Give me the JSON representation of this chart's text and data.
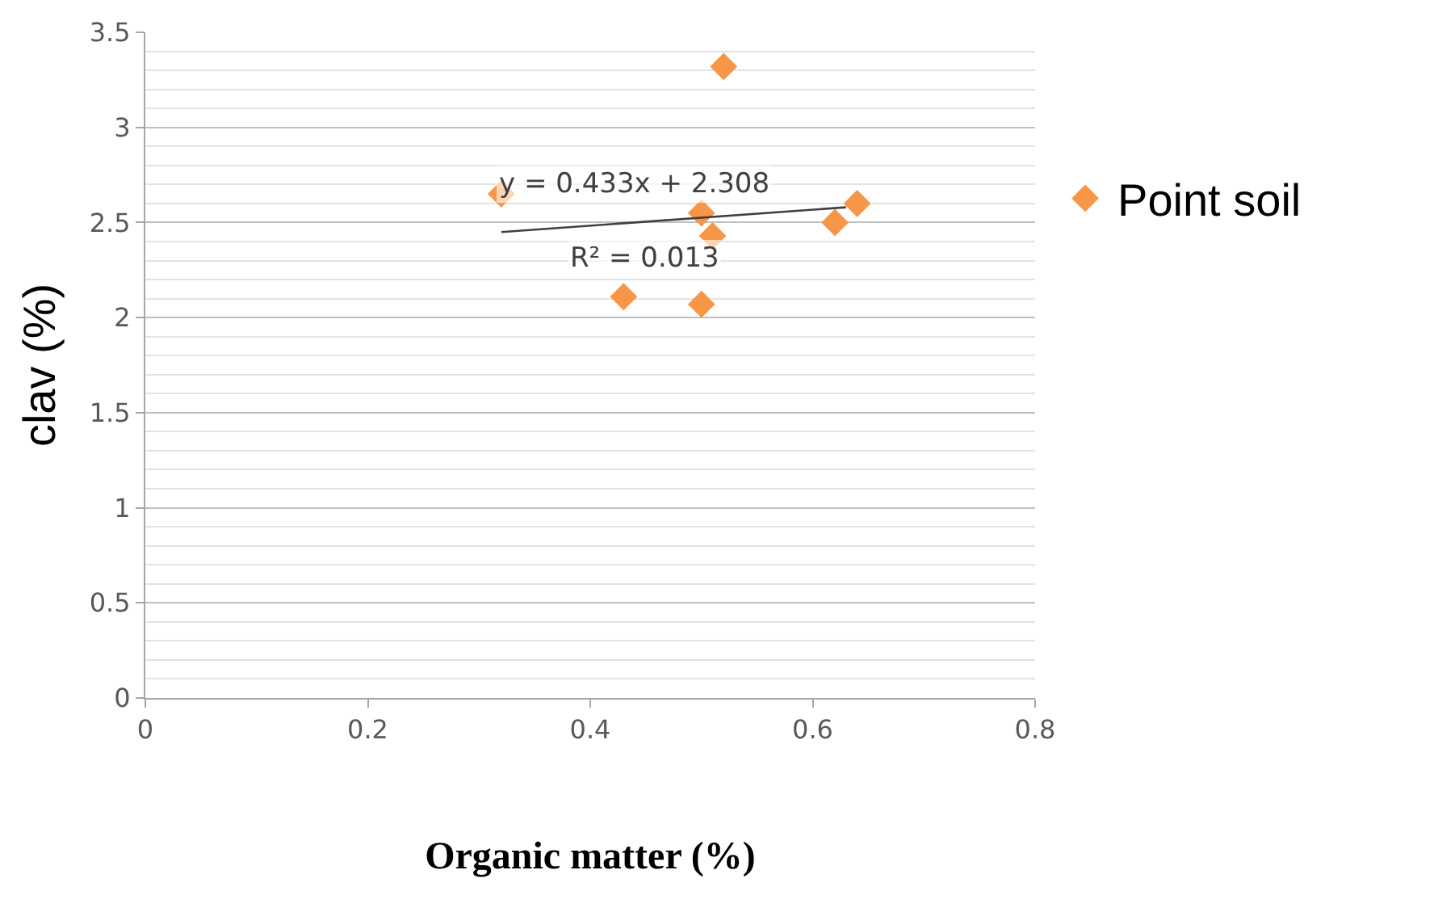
{
  "chart_data": {
    "type": "scatter",
    "xlabel": "Organic matter (%)",
    "ylabel": "clav (%)",
    "xlim": [
      0,
      0.8
    ],
    "xticks": [
      0,
      0.2,
      0.4,
      0.6,
      0.8
    ],
    "ylim": [
      0,
      3.5
    ],
    "yticks": [
      0,
      0.5,
      1,
      1.5,
      2,
      2.5,
      3,
      3.5
    ],
    "grid": "y",
    "legend": "right",
    "series": [
      {
        "name": "Point soil",
        "color": "#f79646",
        "marker": "diamond",
        "x": [
          0.32,
          0.52,
          0.5,
          0.51,
          0.62,
          0.64,
          0.43,
          0.5
        ],
        "values": [
          2.65,
          3.32,
          2.55,
          2.43,
          2.5,
          2.6,
          2.11,
          2.07
        ]
      },
      {
        "type": "line",
        "color": "#404040",
        "x": [
          0.32,
          0.63
        ],
        "values": [
          2.45,
          2.58
        ]
      }
    ],
    "annotations": [
      "y = 0.433x + 2.308",
      "R² = 0.013"
    ]
  }
}
